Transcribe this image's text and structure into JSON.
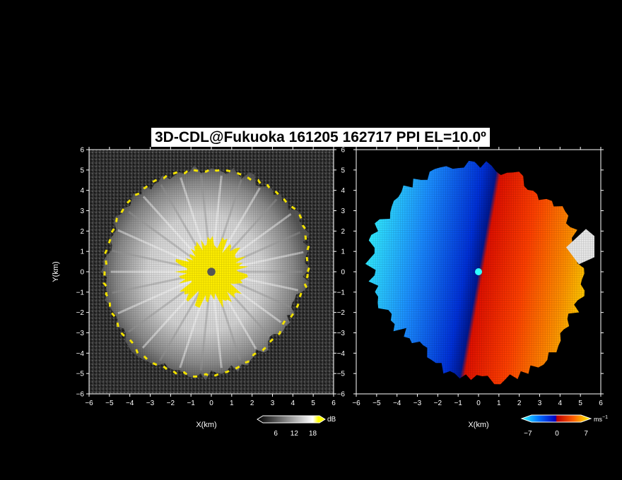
{
  "title": "3D-CDL@Fukuoka 161205 162717 PPI EL=10.0º",
  "chart_data": [
    {
      "type": "heatmap",
      "panel": "reflectivity",
      "xlabel": "X(km)",
      "ylabel": "Y(km)",
      "xlim": [
        -6,
        6
      ],
      "ylim": [
        -6,
        6
      ],
      "xticks": [
        -6,
        -5,
        -4,
        -3,
        -2,
        -1,
        0,
        1,
        2,
        3,
        4,
        5,
        6
      ],
      "yticks": [
        -6,
        -5,
        -4,
        -3,
        -2,
        -1,
        0,
        1,
        2,
        3,
        4,
        5,
        6
      ],
      "colorbar": {
        "unit": "dB",
        "ticks": [
          6,
          12,
          18
        ],
        "range": [
          0,
          22
        ],
        "colors": [
          "#000000",
          "#ffffff",
          "#ffff00"
        ]
      },
      "echo_radius_km": {
        "angles_deg": [
          0,
          30,
          60,
          90,
          120,
          150,
          180,
          210,
          240,
          270,
          300,
          330
        ],
        "values": [
          4.7,
          5.1,
          5.0,
          5.0,
          5.2,
          5.3,
          5.2,
          5.3,
          5.3,
          5.1,
          4.6,
          4.4
        ]
      },
      "saturated_radius_km": 1.9,
      "center_blank_km": 0.2
    },
    {
      "type": "heatmap",
      "panel": "doppler_velocity",
      "xlabel": "X(km)",
      "xlim": [
        -6,
        6
      ],
      "ylim": [
        -6,
        6
      ],
      "xticks": [
        -6,
        -5,
        -4,
        -3,
        -2,
        -1,
        0,
        1,
        2,
        3,
        4,
        5,
        6
      ],
      "yticks": [
        -6,
        -5,
        -4,
        -3,
        -2,
        -1,
        0,
        1,
        2,
        3,
        4,
        5,
        6
      ],
      "colorbar": {
        "unit": "ms",
        "unit_exp": "−1",
        "ticks": [
          -7,
          0,
          7
        ],
        "range": [
          -8,
          8
        ],
        "colors": [
          "#30ffff",
          "#0050ff",
          "#0000c8",
          "#ff0000",
          "#ff8000",
          "#ffff00"
        ]
      },
      "echo_radius_km": {
        "angles_deg": [
          0,
          30,
          60,
          90,
          120,
          150,
          180,
          210,
          240,
          270,
          300,
          330
        ],
        "values": [
          5.0,
          5.0,
          4.9,
          5.2,
          5.4,
          5.3,
          5.4,
          5.0,
          4.6,
          5.3,
          5.4,
          5.3
        ]
      },
      "wind_from_deg": 100
    }
  ]
}
